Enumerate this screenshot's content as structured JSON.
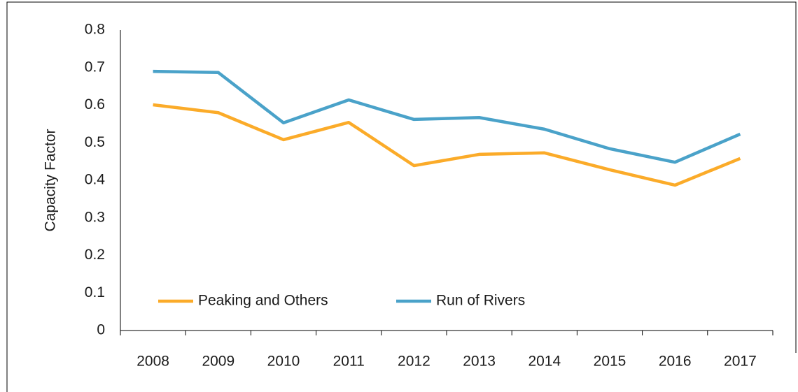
{
  "chart_data": {
    "type": "line",
    "ylabel": "Capacity Factor",
    "categories": [
      "2008",
      "2009",
      "2010",
      "2011",
      "2012",
      "2013",
      "2014",
      "2015",
      "2016",
      "2017"
    ],
    "series": [
      {
        "name": "Peaking and Others",
        "color": "#fbab29",
        "values": [
          0.601,
          0.58,
          0.508,
          0.554,
          0.439,
          0.469,
          0.473,
          0.428,
          0.387,
          0.458
        ]
      },
      {
        "name": "Run of Rivers",
        "color": "#4aa2c9",
        "values": [
          0.69,
          0.687,
          0.553,
          0.614,
          0.562,
          0.567,
          0.536,
          0.484,
          0.448,
          0.523
        ]
      }
    ],
    "ylim": [
      0,
      0.8
    ],
    "yticks": [
      0,
      0.1,
      0.2,
      0.3,
      0.4,
      0.5,
      0.6,
      0.7,
      0.8
    ],
    "grid": false,
    "legend": "lower left"
  }
}
